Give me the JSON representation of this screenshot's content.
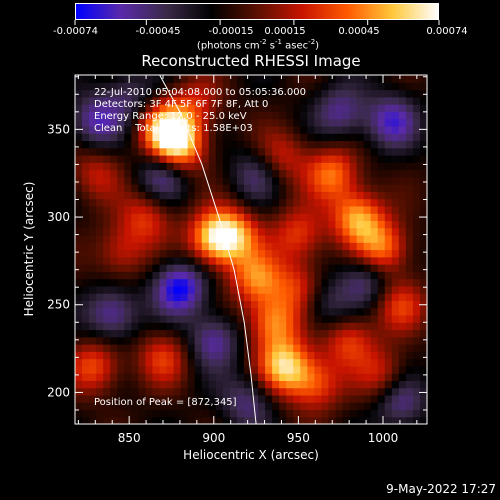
{
  "chart_data": {
    "type": "heatmap",
    "title": "Reconstructed RHESSI Image",
    "xlabel": "Heliocentric X (arcsec)",
    "ylabel": "Heliocentric Y (arcsec)",
    "xlim": [
      818,
      1026
    ],
    "ylim": [
      182,
      381
    ],
    "xticks": [
      850,
      900,
      950,
      1000
    ],
    "yticks": [
      200,
      250,
      300,
      350
    ],
    "colorbar": {
      "min": -0.00074,
      "max": 0.00074,
      "ticks": [
        "-0.00074",
        "-0.00045",
        "-0.00015",
        "0.00015",
        "0.00045",
        "0.00074"
      ],
      "unit_text": "(photons cm",
      "unit_sup1": "-2",
      "unit_mid": " s",
      "unit_sup2": "-1",
      "unit_mid2": " asec",
      "unit_sup3": "-2",
      "unit_end": ")",
      "colors": [
        "#0000ff",
        "#5a2aa8",
        "#3a2a48",
        "#000000",
        "#5a1000",
        "#c81400",
        "#ff5a00",
        "#ffc83c",
        "#ffffff"
      ]
    },
    "annotations": [
      "22-Jul-2010 05:04:08.000 to 05:05:36.000",
      "Detectors: 3F 4F 5F 6F 7F 8F, Att 0",
      "Energy Range: 12.0 - 25.0 keV",
      "Clean    Total Counts: 1.58E+03"
    ],
    "peak_label": "Position of Peak = [872,345]",
    "peak": [
      872,
      345
    ],
    "limb_curve": [
      [
        868,
        381
      ],
      [
        880,
        360
      ],
      [
        893,
        330
      ],
      [
        903,
        300
      ],
      [
        912,
        270
      ],
      [
        918,
        240
      ],
      [
        922,
        210
      ],
      [
        925,
        182
      ]
    ],
    "blobs": [
      {
        "x": 872,
        "y": 350,
        "v": 1.0
      },
      {
        "x": 880,
        "y": 340,
        "v": 0.8
      },
      {
        "x": 900,
        "y": 288,
        "v": 0.9
      },
      {
        "x": 912,
        "y": 290,
        "v": 0.7
      },
      {
        "x": 942,
        "y": 215,
        "v": 0.95
      },
      {
        "x": 935,
        "y": 240,
        "v": 0.75
      },
      {
        "x": 925,
        "y": 265,
        "v": 0.7
      },
      {
        "x": 950,
        "y": 290,
        "v": 0.55
      },
      {
        "x": 985,
        "y": 300,
        "v": 0.85
      },
      {
        "x": 970,
        "y": 325,
        "v": 0.7
      },
      {
        "x": 1000,
        "y": 282,
        "v": 0.75
      },
      {
        "x": 860,
        "y": 300,
        "v": 0.5
      },
      {
        "x": 845,
        "y": 280,
        "v": 0.45
      },
      {
        "x": 830,
        "y": 215,
        "v": 0.6
      },
      {
        "x": 870,
        "y": 220,
        "v": 0.5
      },
      {
        "x": 980,
        "y": 230,
        "v": 0.55
      },
      {
        "x": 1010,
        "y": 250,
        "v": 0.5
      },
      {
        "x": 940,
        "y": 335,
        "v": 0.45
      },
      {
        "x": 830,
        "y": 325,
        "v": 0.4
      },
      {
        "x": 960,
        "y": 205,
        "v": 0.6
      },
      {
        "x": 1000,
        "y": 210,
        "v": 0.45
      },
      {
        "x": 890,
        "y": 365,
        "v": 0.4
      },
      {
        "x": 950,
        "y": 260,
        "v": 0.5
      },
      {
        "x": 840,
        "y": 245,
        "v": -0.6
      },
      {
        "x": 880,
        "y": 260,
        "v": -0.8
      },
      {
        "x": 870,
        "y": 325,
        "v": -0.55
      },
      {
        "x": 830,
        "y": 355,
        "v": -0.55
      },
      {
        "x": 1005,
        "y": 355,
        "v": -0.6
      },
      {
        "x": 975,
        "y": 360,
        "v": -0.5
      },
      {
        "x": 990,
        "y": 265,
        "v": -0.5
      },
      {
        "x": 965,
        "y": 250,
        "v": -0.4
      },
      {
        "x": 920,
        "y": 195,
        "v": -0.45
      },
      {
        "x": 1010,
        "y": 195,
        "v": -0.5
      },
      {
        "x": 900,
        "y": 230,
        "v": -0.55
      },
      {
        "x": 925,
        "y": 325,
        "v": -0.4
      },
      {
        "x": 850,
        "y": 370,
        "v": -0.35
      }
    ]
  },
  "footer": {
    "timestamp": "9-May-2022 17:27"
  }
}
